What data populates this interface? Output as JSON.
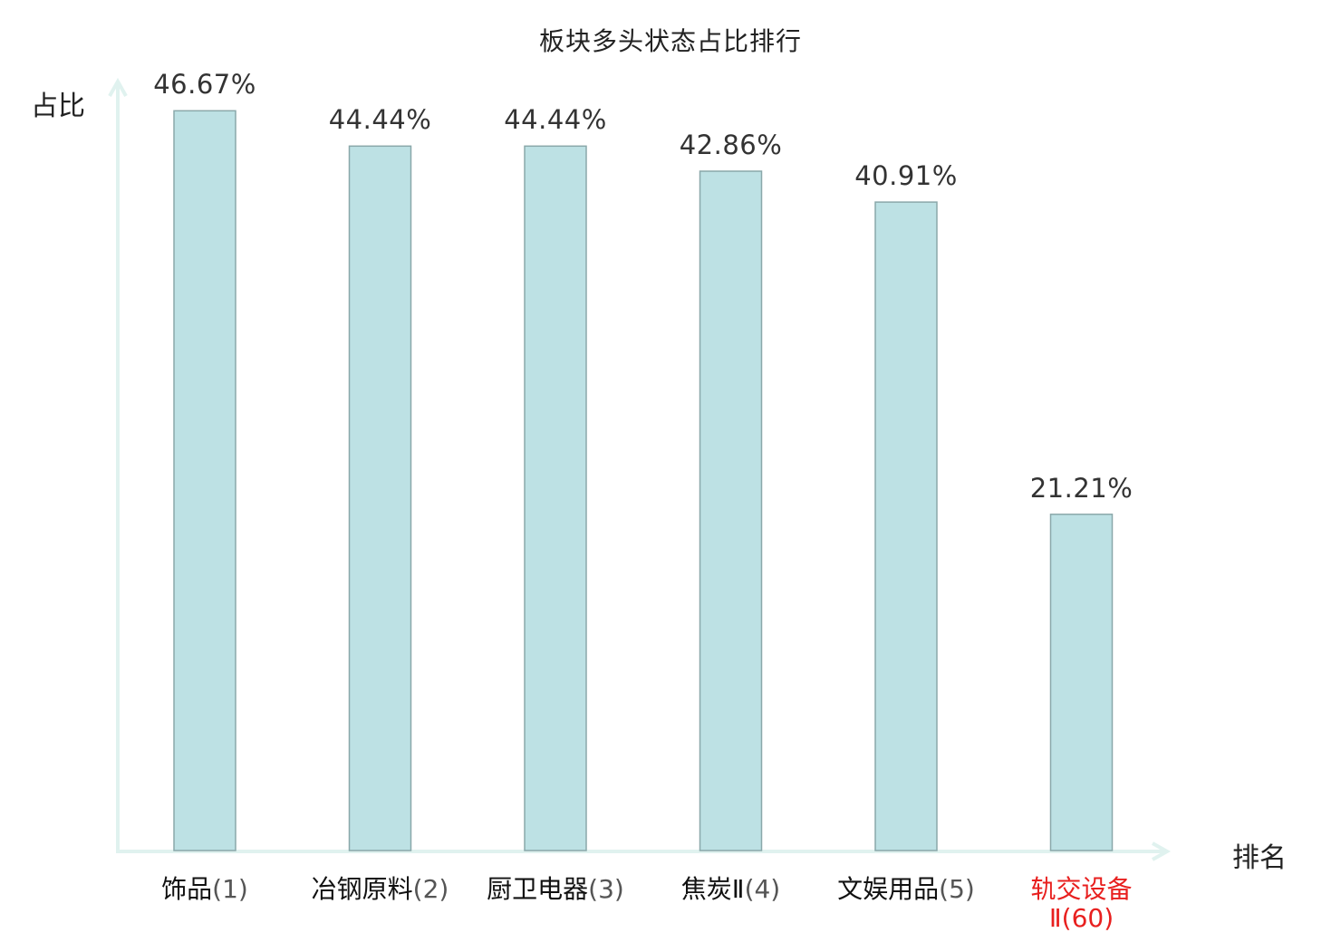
{
  "chart_data": {
    "type": "bar",
    "title": "板块多头状态占比排行",
    "ylabel": "占比",
    "xlabel": "排名",
    "categories": [
      {
        "name": "饰品",
        "rank": "(1)"
      },
      {
        "name": "冶钢原料",
        "rank": "(2)"
      },
      {
        "name": "厨卫电器",
        "rank": "(3)"
      },
      {
        "name": "焦炭Ⅱ",
        "rank": "(4)"
      },
      {
        "name": "文娱用品",
        "rank": "(5)"
      },
      {
        "name": "轨交设备",
        "rank": "Ⅱ(60)"
      }
    ],
    "values": [
      46.67,
      44.44,
      44.44,
      42.86,
      40.91,
      21.21
    ],
    "value_labels": [
      "46.67%",
      "44.44%",
      "44.44%",
      "42.86%",
      "40.91%",
      "21.21%"
    ],
    "highlight_index": 5,
    "ylim": [
      0,
      50
    ],
    "grid": false,
    "colors": {
      "bar_fill": "#bde1e4",
      "bar_stroke": "#8aa8aa",
      "axis": "#e0f2ef",
      "highlight": "#e8201f"
    }
  }
}
